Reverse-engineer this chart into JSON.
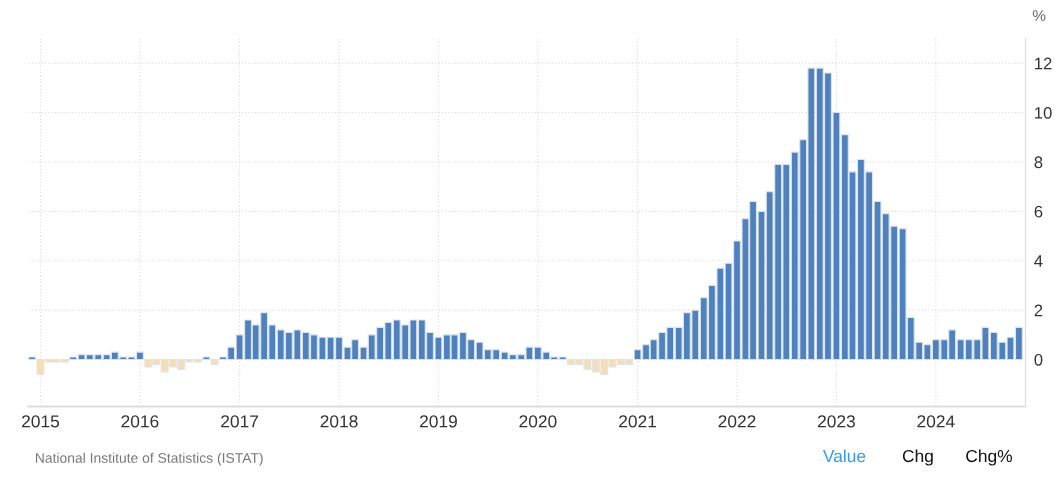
{
  "chart_data": {
    "type": "bar",
    "ylabel": "%",
    "x": [
      "2014-12",
      "2015-01",
      "2015-02",
      "2015-03",
      "2015-04",
      "2015-05",
      "2015-06",
      "2015-07",
      "2015-08",
      "2015-09",
      "2015-10",
      "2015-11",
      "2015-12",
      "2016-01",
      "2016-02",
      "2016-03",
      "2016-04",
      "2016-05",
      "2016-06",
      "2016-07",
      "2016-08",
      "2016-09",
      "2016-10",
      "2016-11",
      "2016-12",
      "2017-01",
      "2017-02",
      "2017-03",
      "2017-04",
      "2017-05",
      "2017-06",
      "2017-07",
      "2017-08",
      "2017-09",
      "2017-10",
      "2017-11",
      "2017-12",
      "2018-01",
      "2018-02",
      "2018-03",
      "2018-04",
      "2018-05",
      "2018-06",
      "2018-07",
      "2018-08",
      "2018-09",
      "2018-10",
      "2018-11",
      "2018-12",
      "2019-01",
      "2019-02",
      "2019-03",
      "2019-04",
      "2019-05",
      "2019-06",
      "2019-07",
      "2019-08",
      "2019-09",
      "2019-10",
      "2019-11",
      "2019-12",
      "2020-01",
      "2020-02",
      "2020-03",
      "2020-04",
      "2020-05",
      "2020-06",
      "2020-07",
      "2020-08",
      "2020-09",
      "2020-10",
      "2020-11",
      "2020-12",
      "2021-01",
      "2021-02",
      "2021-03",
      "2021-04",
      "2021-05",
      "2021-06",
      "2021-07",
      "2021-08",
      "2021-09",
      "2021-10",
      "2021-11",
      "2021-12",
      "2022-01",
      "2022-02",
      "2022-03",
      "2022-04",
      "2022-05",
      "2022-06",
      "2022-07",
      "2022-08",
      "2022-09",
      "2022-10",
      "2022-11",
      "2022-12",
      "2023-01",
      "2023-02",
      "2023-03",
      "2023-04",
      "2023-05",
      "2023-06",
      "2023-07",
      "2023-08",
      "2023-09",
      "2023-10",
      "2023-11",
      "2023-12",
      "2024-01",
      "2024-02",
      "2024-03",
      "2024-04",
      "2024-05",
      "2024-06",
      "2024-07",
      "2024-08",
      "2024-09",
      "2024-10",
      "2024-11"
    ],
    "values": [
      0.1,
      -0.6,
      -0.1,
      -0.1,
      -0.1,
      0.1,
      0.2,
      0.2,
      0.2,
      0.2,
      0.3,
      0.1,
      0.1,
      0.3,
      -0.3,
      -0.2,
      -0.5,
      -0.3,
      -0.4,
      -0.1,
      -0.1,
      0.1,
      -0.2,
      0.1,
      0.5,
      1.0,
      1.6,
      1.4,
      1.9,
      1.4,
      1.2,
      1.1,
      1.2,
      1.1,
      1.0,
      0.9,
      0.9,
      0.9,
      0.5,
      0.8,
      0.5,
      1.0,
      1.3,
      1.5,
      1.6,
      1.4,
      1.6,
      1.6,
      1.1,
      0.9,
      1.0,
      1.0,
      1.1,
      0.8,
      0.7,
      0.4,
      0.4,
      0.3,
      0.2,
      0.2,
      0.5,
      0.5,
      0.3,
      0.1,
      0.1,
      -0.2,
      -0.2,
      -0.4,
      -0.5,
      -0.6,
      -0.3,
      -0.2,
      -0.2,
      0.4,
      0.6,
      0.8,
      1.1,
      1.3,
      1.3,
      1.9,
      2.0,
      2.5,
      3.0,
      3.7,
      3.9,
      4.8,
      5.7,
      6.4,
      6.0,
      6.8,
      7.9,
      7.9,
      8.4,
      8.9,
      11.8,
      11.8,
      11.6,
      10.0,
      9.1,
      7.6,
      8.1,
      7.6,
      6.4,
      5.9,
      5.4,
      5.3,
      1.7,
      0.7,
      0.6,
      0.8,
      0.8,
      1.2,
      0.8,
      0.8,
      0.8,
      1.3,
      1.1,
      0.7,
      0.9,
      1.3
    ],
    "colors": [
      "#4f81bd",
      "#f5deb3",
      "#f5deb3",
      "#f5deb3",
      "#f5deb3",
      "#4f81bd",
      "#4f81bd",
      "#4f81bd",
      "#4f81bd",
      "#4f81bd",
      "#4f81bd",
      "#4f81bd",
      "#4f81bd",
      "#4f81bd",
      "#f5deb3",
      "#f5deb3",
      "#f5deb3",
      "#f5deb3",
      "#f5deb3",
      "#f5deb3",
      "#f5deb3",
      "#4f81bd",
      "#f5deb3",
      "#4f81bd",
      "#4f81bd",
      "#4f81bd",
      "#4f81bd",
      "#4f81bd",
      "#4f81bd",
      "#4f81bd",
      "#4f81bd",
      "#4f81bd",
      "#4f81bd",
      "#4f81bd",
      "#4f81bd",
      "#4f81bd",
      "#4f81bd",
      "#4f81bd",
      "#4f81bd",
      "#4f81bd",
      "#4f81bd",
      "#4f81bd",
      "#4f81bd",
      "#4f81bd",
      "#4f81bd",
      "#4f81bd",
      "#4f81bd",
      "#4f81bd",
      "#4f81bd",
      "#4f81bd",
      "#4f81bd",
      "#4f81bd",
      "#4f81bd",
      "#4f81bd",
      "#4f81bd",
      "#4f81bd",
      "#4f81bd",
      "#4f81bd",
      "#4f81bd",
      "#4f81bd",
      "#4f81bd",
      "#4f81bd",
      "#4f81bd",
      "#4f81bd",
      "#4f81bd",
      "#f5deb3",
      "#f5deb3",
      "#f5deb3",
      "#f5deb3",
      "#f5deb3",
      "#f5deb3",
      "#f5deb3",
      "#f5deb3",
      "#4f81bd",
      "#4f81bd",
      "#4f81bd",
      "#4f81bd",
      "#4f81bd",
      "#4f81bd",
      "#4f81bd",
      "#4f81bd",
      "#4f81bd",
      "#4f81bd",
      "#4f81bd",
      "#4f81bd",
      "#4f81bd",
      "#4f81bd",
      "#4f81bd",
      "#4f81bd",
      "#4f81bd",
      "#4f81bd",
      "#4f81bd",
      "#4f81bd",
      "#4f81bd",
      "#4f81bd",
      "#4f81bd",
      "#4f81bd",
      "#4f81bd",
      "#4f81bd",
      "#4f81bd",
      "#4f81bd",
      "#4f81bd",
      "#4f81bd",
      "#4f81bd",
      "#4f81bd",
      "#4f81bd",
      "#4f81bd",
      "#4f81bd",
      "#4f81bd",
      "#4f81bd",
      "#4f81bd",
      "#4f81bd",
      "#4f81bd",
      "#4f81bd",
      "#4f81bd",
      "#4f81bd",
      "#4f81bd",
      "#4f81bd",
      "#4f81bd",
      "#4f81bd"
    ],
    "xlim": [
      "2014-11-18",
      "2024-11-25"
    ],
    "xticks": [
      {
        "value": "2015-01-01",
        "label": "2015"
      },
      {
        "value": "2016-01-01",
        "label": "2016"
      },
      {
        "value": "2017-01-01",
        "label": "2017"
      },
      {
        "value": "2018-01-01",
        "label": "2018"
      },
      {
        "value": "2019-01-01",
        "label": "2019"
      },
      {
        "value": "2020-01-01",
        "label": "2020"
      },
      {
        "value": "2021-01-01",
        "label": "2021"
      },
      {
        "value": "2022-01-01",
        "label": "2022"
      },
      {
        "value": "2023-01-01",
        "label": "2023"
      },
      {
        "value": "2024-01-01",
        "label": "2024"
      }
    ],
    "ylim": [
      -1.9,
      13
    ],
    "yticks": [
      0,
      2,
      4,
      6,
      8,
      10,
      12
    ],
    "grid": true,
    "legend": false,
    "annotations": [
      "National Institute of Statistics (ISTAT)",
      "Value",
      "Chg",
      "Chg%"
    ]
  }
}
